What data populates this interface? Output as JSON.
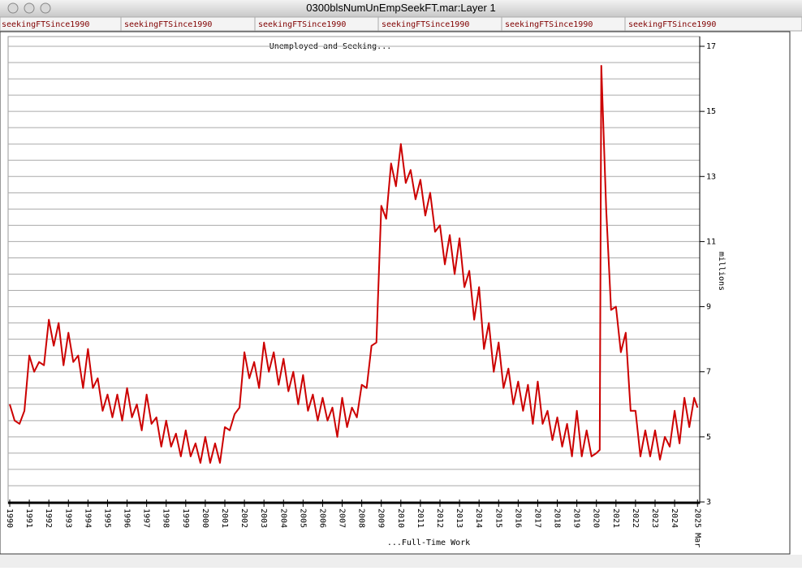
{
  "window_title": "0300blsNumUnEmpSeekFT.mar:Layer 1",
  "tabs": [
    "seekingFTSince1990",
    "seekingFTSince1990",
    "seekingFTSince1990",
    "seekingFTSince1990",
    "seekingFTSince1990",
    "seekingFTSince1990"
  ],
  "chart_data": {
    "type": "line",
    "title": "Unemployed and Seeking...",
    "x_label": "...Full-Time Work",
    "y_label": "millions",
    "grid": true,
    "xlim": [
      1990,
      2025.2
    ],
    "ylim": [
      3,
      17
    ],
    "yticks": [
      3,
      5,
      7,
      9,
      11,
      13,
      15,
      17
    ],
    "yminorticks": [
      3.5,
      4,
      4.5,
      5.5,
      6,
      6.5,
      7.5,
      8,
      8.5,
      9.5,
      10,
      10.5,
      11.5,
      12,
      12.5,
      13.5,
      14,
      14.5,
      15.5,
      16,
      16.5
    ],
    "xticks": [
      1990,
      1991,
      1992,
      1993,
      1994,
      1995,
      1996,
      1997,
      1998,
      1999,
      2000,
      2001,
      2002,
      2003,
      2004,
      2005,
      2006,
      2007,
      2008,
      2009,
      2010,
      2011,
      2012,
      2013,
      2014,
      2015,
      2016,
      2017,
      2018,
      2019,
      2020,
      2021,
      2022,
      2023,
      2024,
      {
        "value": 2025.17,
        "label": "2025 Mar"
      }
    ],
    "series": [
      {
        "name": "seekingFTSince1990",
        "color": "#cc0000",
        "x": [
          1990,
          1990.25,
          1990.5,
          1990.75,
          1991,
          1991.25,
          1991.5,
          1991.75,
          1992,
          1992.25,
          1992.5,
          1992.75,
          1993,
          1993.25,
          1993.5,
          1993.75,
          1994,
          1994.25,
          1994.5,
          1994.75,
          1995,
          1995.25,
          1995.5,
          1995.75,
          1996,
          1996.25,
          1996.5,
          1996.75,
          1997,
          1997.25,
          1997.5,
          1997.75,
          1998,
          1998.25,
          1998.5,
          1998.75,
          1999,
          1999.25,
          1999.5,
          1999.75,
          2000,
          2000.25,
          2000.5,
          2000.75,
          2001,
          2001.25,
          2001.5,
          2001.75,
          2002,
          2002.25,
          2002.5,
          2002.75,
          2003,
          2003.25,
          2003.5,
          2003.75,
          2004,
          2004.25,
          2004.5,
          2004.75,
          2005,
          2005.25,
          2005.5,
          2005.75,
          2006,
          2006.25,
          2006.5,
          2006.75,
          2007,
          2007.25,
          2007.5,
          2007.75,
          2008,
          2008.25,
          2008.5,
          2008.75,
          2009,
          2009.25,
          2009.5,
          2009.75,
          2010,
          2010.25,
          2010.5,
          2010.75,
          2011,
          2011.25,
          2011.5,
          2011.75,
          2012,
          2012.25,
          2012.5,
          2012.75,
          2013,
          2013.25,
          2013.5,
          2013.75,
          2014,
          2014.25,
          2014.5,
          2014.75,
          2015,
          2015.25,
          2015.5,
          2015.75,
          2016,
          2016.25,
          2016.5,
          2016.75,
          2017,
          2017.25,
          2017.5,
          2017.75,
          2018,
          2018.25,
          2018.5,
          2018.75,
          2019,
          2019.25,
          2019.5,
          2019.75,
          2020,
          2020.17,
          2020.25,
          2020.5,
          2020.75,
          2021,
          2021.25,
          2021.5,
          2021.75,
          2022,
          2022.25,
          2022.5,
          2022.75,
          2023,
          2023.25,
          2023.5,
          2023.75,
          2024,
          2024.25,
          2024.5,
          2024.75,
          2025,
          2025.17
        ],
        "values": [
          6.0,
          5.5,
          5.4,
          5.8,
          7.5,
          7.0,
          7.3,
          7.2,
          8.6,
          7.8,
          8.5,
          7.2,
          8.2,
          7.3,
          7.5,
          6.5,
          7.7,
          6.5,
          6.8,
          5.8,
          6.3,
          5.6,
          6.3,
          5.5,
          6.5,
          5.6,
          6.0,
          5.2,
          6.3,
          5.4,
          5.6,
          4.7,
          5.5,
          4.7,
          5.1,
          4.4,
          5.2,
          4.4,
          4.8,
          4.2,
          5.0,
          4.2,
          4.8,
          4.2,
          5.3,
          5.2,
          5.7,
          5.9,
          7.6,
          6.8,
          7.3,
          6.5,
          7.9,
          7.0,
          7.6,
          6.6,
          7.4,
          6.4,
          7.0,
          6.0,
          6.9,
          5.8,
          6.3,
          5.5,
          6.2,
          5.5,
          5.9,
          5.0,
          6.2,
          5.3,
          5.9,
          5.6,
          6.6,
          6.5,
          7.8,
          7.9,
          12.1,
          11.7,
          13.4,
          12.7,
          14.0,
          12.8,
          13.2,
          12.3,
          12.9,
          11.8,
          12.5,
          11.3,
          11.5,
          10.3,
          11.2,
          10.0,
          11.1,
          9.6,
          10.1,
          8.6,
          9.6,
          7.7,
          8.5,
          7.0,
          7.9,
          6.5,
          7.1,
          6.0,
          6.7,
          5.8,
          6.6,
          5.4,
          6.7,
          5.4,
          5.8,
          4.9,
          5.6,
          4.7,
          5.4,
          4.4,
          5.8,
          4.4,
          5.2,
          4.4,
          4.5,
          4.6,
          16.4,
          12.0,
          8.9,
          9.0,
          7.6,
          8.2,
          5.8,
          5.8,
          4.4,
          5.2,
          4.4,
          5.2,
          4.3,
          5.0,
          4.7,
          5.8,
          4.8,
          6.2,
          5.3,
          6.2,
          5.9
        ]
      }
    ]
  }
}
